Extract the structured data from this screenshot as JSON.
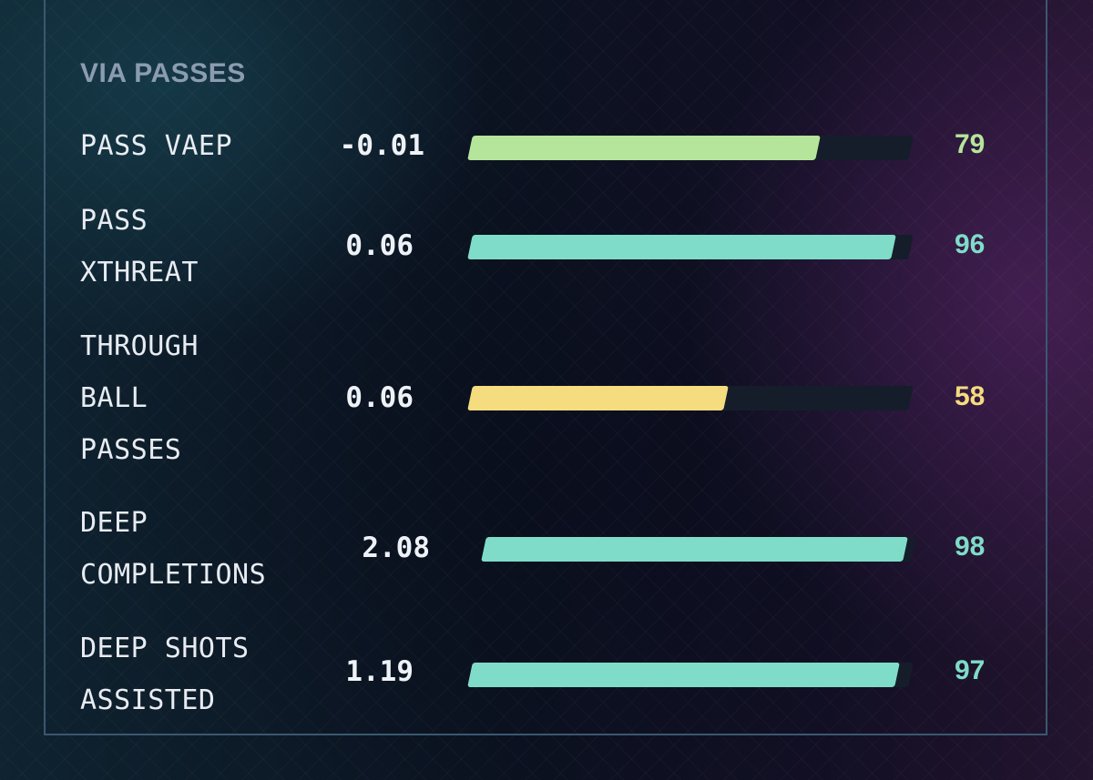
{
  "section": {
    "title": "VIA PASSES"
  },
  "colors": {
    "green": "#b5e59a",
    "teal": "#7fdcc8",
    "yellow": "#f4dc7f"
  },
  "metrics": [
    {
      "label": "PASS VAEP",
      "value": "-0.01",
      "percentile": 79,
      "percentile_label": "79",
      "color": "#b5e59a"
    },
    {
      "label": "PASS\nXTHREAT",
      "value": "0.06",
      "percentile": 96,
      "percentile_label": "96",
      "color": "#7fdcc8"
    },
    {
      "label": "THROUGH\nBALL\nPASSES",
      "value": "0.06",
      "percentile": 58,
      "percentile_label": "58",
      "color": "#f4dc7f"
    },
    {
      "label": "DEEP\nCOMPLETIONS",
      "value": "2.08",
      "percentile": 98,
      "percentile_label": "98",
      "color": "#7fdcc8"
    },
    {
      "label": "DEEP SHOTS\nASSISTED",
      "value": "1.19",
      "percentile": 97,
      "percentile_label": "97",
      "color": "#7fdcc8"
    }
  ]
}
